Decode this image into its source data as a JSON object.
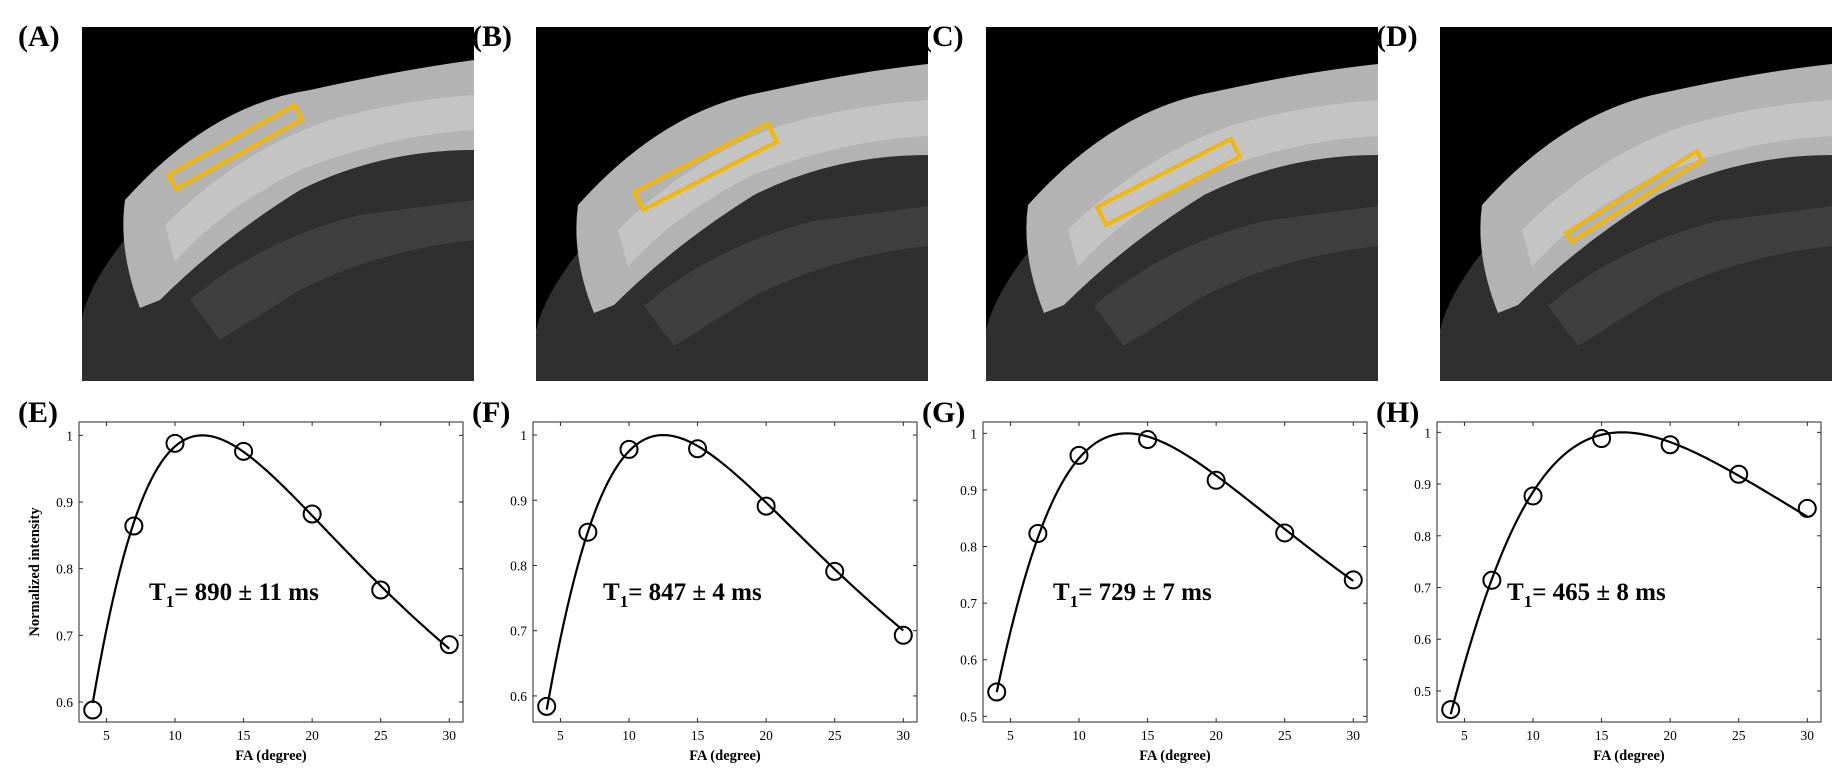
{
  "image_panels": [
    {
      "label": "(A)",
      "roi_color": "#f2b705"
    },
    {
      "label": "(B)",
      "roi_color": "#f2b705"
    },
    {
      "label": "(C)",
      "roi_color": "#f2b705"
    },
    {
      "label": "(D)",
      "roi_color": "#f2b705"
    }
  ],
  "chart_data": [
    {
      "panel": "(E)",
      "type": "scatter",
      "xlabel": "FA (degree)",
      "ylabel": "Normalized intensity",
      "xlim": [
        3,
        31
      ],
      "ylim": [
        0.57,
        1.02
      ],
      "xticks": [
        5,
        10,
        15,
        20,
        25,
        30
      ],
      "yticks": [
        0.6,
        0.7,
        0.8,
        0.9,
        1
      ],
      "ytick_labels": [
        "0.6",
        "0.7",
        "0.8",
        "0.9",
        "1"
      ],
      "x": [
        4,
        7,
        10,
        15,
        20,
        25,
        30
      ],
      "y": [
        0.588,
        0.864,
        0.988,
        0.976,
        0.882,
        0.768,
        0.686
      ],
      "fit_curve": "spgr",
      "fit_peak_fa": 12,
      "annotation": {
        "prefix": "T",
        "sub": "1",
        "text": "= 890 ± 11 ms"
      }
    },
    {
      "panel": "(F)",
      "type": "scatter",
      "xlabel": "FA (degree)",
      "ylabel": "",
      "xlim": [
        3,
        31
      ],
      "ylim": [
        0.56,
        1.02
      ],
      "xticks": [
        5,
        10,
        15,
        20,
        25,
        30
      ],
      "yticks": [
        0.6,
        0.7,
        0.8,
        0.9,
        1
      ],
      "ytick_labels": [
        "0.6",
        "0.7",
        "0.8",
        "0.9",
        "1"
      ],
      "x": [
        4,
        7,
        10,
        15,
        20,
        25,
        30
      ],
      "y": [
        0.584,
        0.851,
        0.978,
        0.979,
        0.891,
        0.791,
        0.693
      ],
      "fit_curve": "spgr",
      "fit_peak_fa": 12.5,
      "annotation": {
        "prefix": "T",
        "sub": "1",
        "text": "= 847 ± 4 ms"
      }
    },
    {
      "panel": "(G)",
      "type": "scatter",
      "xlabel": "FA (degree)",
      "ylabel": "",
      "xlim": [
        3,
        31
      ],
      "ylim": [
        0.49,
        1.02
      ],
      "xticks": [
        5,
        10,
        15,
        20,
        25,
        30
      ],
      "yticks": [
        0.5,
        0.6,
        0.7,
        0.8,
        0.9,
        1
      ],
      "ytick_labels": [
        "0.5",
        "0.6",
        "0.7",
        "0.8",
        "0.9",
        "1"
      ],
      "x": [
        4,
        7,
        10,
        15,
        20,
        25,
        30
      ],
      "y": [
        0.543,
        0.823,
        0.961,
        0.989,
        0.917,
        0.824,
        0.741
      ],
      "fit_curve": "spgr",
      "fit_peak_fa": 13.5,
      "annotation": {
        "prefix": "T",
        "sub": "1",
        "text": "= 729 ± 7 ms"
      }
    },
    {
      "panel": "(H)",
      "type": "scatter",
      "xlabel": "FA (degree)",
      "ylabel": "",
      "xlim": [
        3,
        31
      ],
      "ylim": [
        0.44,
        1.02
      ],
      "xticks": [
        5,
        10,
        15,
        20,
        25,
        30
      ],
      "yticks": [
        0.5,
        0.6,
        0.7,
        0.8,
        0.9,
        1
      ],
      "ytick_labels": [
        "0.5",
        "0.6",
        "0.7",
        "0.8",
        "0.9",
        "1"
      ],
      "x": [
        4,
        7,
        10,
        15,
        20,
        25,
        30
      ],
      "y": [
        0.464,
        0.714,
        0.877,
        0.988,
        0.976,
        0.919,
        0.853
      ],
      "fit_curve": "spgr",
      "fit_peak_fa": 16.5,
      "annotation": {
        "prefix": "T",
        "sub": "1",
        "text": "= 465 ± 8 ms"
      }
    }
  ]
}
